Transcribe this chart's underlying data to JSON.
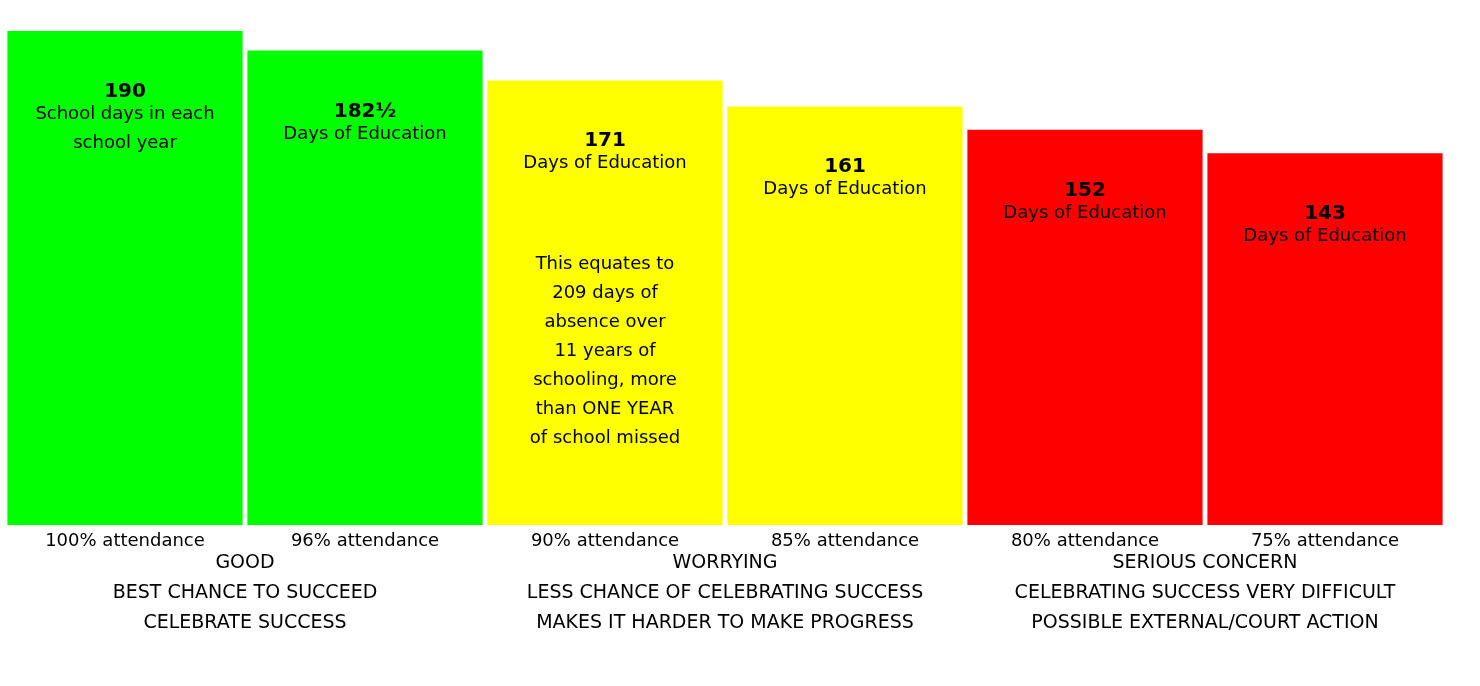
{
  "chart_data": {
    "type": "bar",
    "categories": [
      "100% attendance",
      "96% attendance",
      "90% attendance",
      "85% attendance",
      "80% attendance",
      "75% attendance"
    ],
    "values": [
      190,
      182.5,
      171,
      161,
      152,
      143
    ],
    "value_labels": [
      "190",
      "182½",
      "171",
      "161",
      "152",
      "143"
    ],
    "colors": [
      "#00ff00",
      "#00ff00",
      "#ffff00",
      "#ffff00",
      "#ff0000",
      "#ff0000"
    ],
    "annotations": [
      "School days in each\nschool year",
      "Days of Education",
      "Days of Education",
      "Days of Education",
      "Days of Education",
      "Days of Education",
      "This equates to\n209 days of\nabsence over\n11 years of\nschooling, more\nthan ONE YEAR\nof school missed",
      "GOOD",
      "BEST CHANCE TO SUCCEED",
      "CELEBRATE SUCCESS",
      "WORRYING",
      "LESS CHANCE OF CELEBRATING SUCCESS",
      "MAKES IT HARDER TO MAKE PROGRESS",
      "SERIOUS CONCERN",
      "CELEBRATING SUCCESS VERY DIFFICULT",
      "POSSIBLE EXTERNAL/COURT ACTION"
    ]
  }
}
